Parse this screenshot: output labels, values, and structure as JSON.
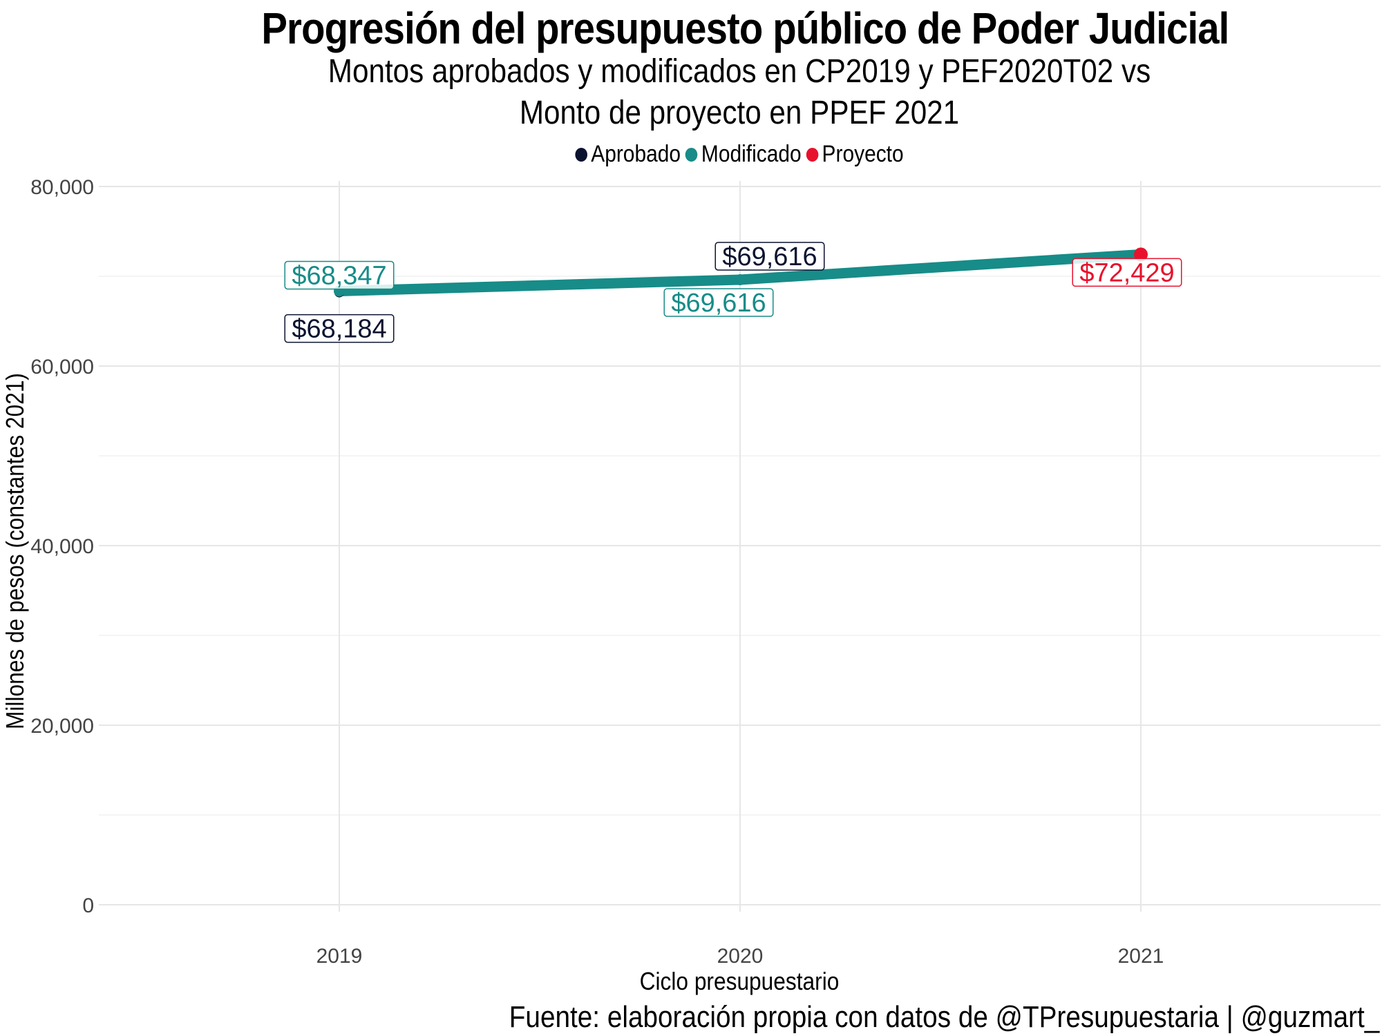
{
  "chart_data": {
    "type": "line",
    "title": "Progresión del presupuesto público de Poder Judicial",
    "subtitle_line1": "Montos aprobados y modificados en CP2019 y PEF2020T02 vs",
    "subtitle_line2": "Monto de proyecto en PPEF 2021",
    "xlabel": "Ciclo presupuestario",
    "ylabel": "Millones de pesos (constantes 2021)",
    "caption": "Fuente: elaboración propia con datos de @TPresupuestaria | @guzmart_",
    "x": [
      "2019",
      "2020",
      "2021"
    ],
    "ylim": [
      0,
      80000
    ],
    "yticks": [
      0,
      20000,
      40000,
      60000,
      80000
    ],
    "ytick_labels": [
      "0",
      "20,000",
      "40,000",
      "60,000",
      "80,000"
    ],
    "grid": true,
    "legend_position": "top",
    "series": [
      {
        "name": "Aprobado",
        "color": "#0b1230",
        "points": [
          {
            "x": "2019",
            "y": 68184,
            "label": "$68,184"
          },
          {
            "x": "2020",
            "y": 69616,
            "label": "$69,616"
          }
        ]
      },
      {
        "name": "Modificado",
        "color": "#178c88",
        "points": [
          {
            "x": "2019",
            "y": 68347,
            "label": "$68,347"
          },
          {
            "x": "2020",
            "y": 69616,
            "label": "$69,616"
          }
        ]
      },
      {
        "name": "Proyecto",
        "color": "#e8112d",
        "points": [
          {
            "x": "2021",
            "y": 72429,
            "label": "$72,429"
          }
        ]
      }
    ]
  }
}
